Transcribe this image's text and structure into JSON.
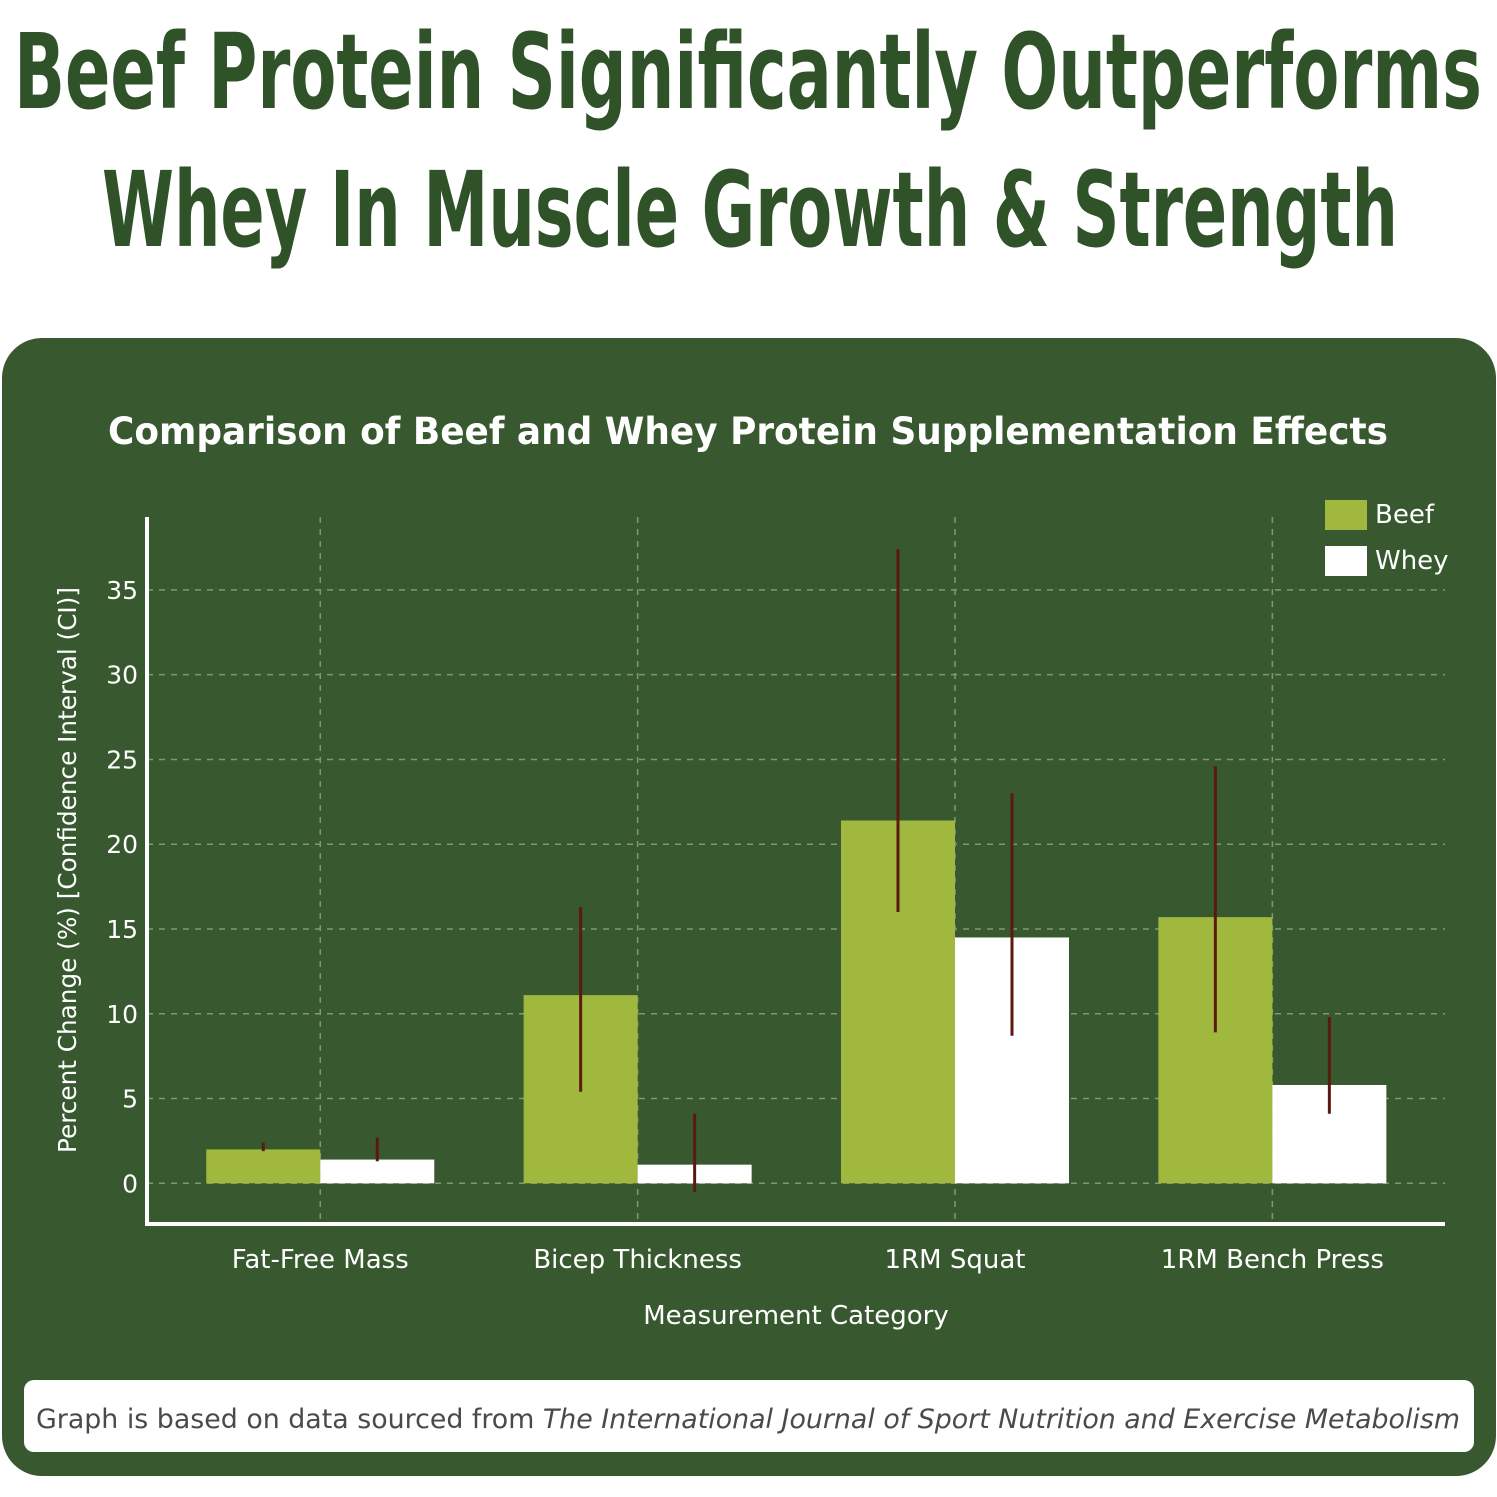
{
  "headline": {
    "line1": "Beef Protein Significantly Outperforms",
    "line2": "Whey In Muscle Growth & Strength"
  },
  "footer": {
    "prefix": "Graph is based on data sourced from ",
    "source": "The International Journal of Sport Nutrition and Exercise Metabolism"
  },
  "colors": {
    "headline": "#2f5229",
    "panel": "#38582f",
    "beef": "#a0b83e",
    "whey": "#ffffff",
    "error_bar": "#5a1a10"
  },
  "chart_data": {
    "type": "bar",
    "title": "Comparison of Beef and Whey Protein Supplementation Effects",
    "xlabel": "Measurement Category",
    "ylabel": "Percent Change (%) [Confidence Interval (CI)]",
    "categories": [
      "Fat-Free Mass",
      "Bicep Thickness",
      "1RM Squat",
      "1RM Bench Press"
    ],
    "yticks": [
      0,
      5,
      10,
      15,
      20,
      25,
      30,
      35
    ],
    "ylim": [
      -2.4,
      39.3
    ],
    "grid": true,
    "legend_position": "top-right",
    "series": [
      {
        "name": "Beef",
        "values": [
          2.0,
          11.1,
          21.4,
          15.7
        ],
        "ci_low": [
          1.9,
          5.4,
          16.0,
          8.9
        ],
        "ci_high": [
          2.4,
          16.3,
          37.4,
          24.6
        ]
      },
      {
        "name": "Whey",
        "values": [
          1.4,
          1.1,
          14.5,
          5.8
        ],
        "ci_low": [
          1.3,
          -0.5,
          8.7,
          4.1
        ],
        "ci_high": [
          2.7,
          4.1,
          23.0,
          9.8
        ]
      }
    ]
  }
}
